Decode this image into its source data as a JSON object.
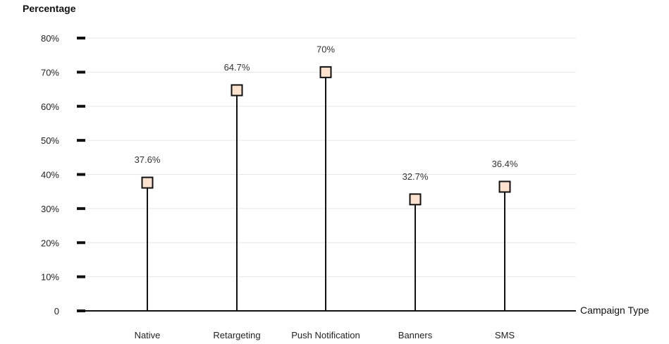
{
  "chart_data": {
    "type": "lollipop",
    "ylabel": "Percentage",
    "xlabel": "Campaign Type",
    "categories": [
      "Native",
      "Retargeting",
      "Push Notification",
      "Banners",
      "SMS"
    ],
    "values": [
      37.6,
      64.7,
      70,
      32.7,
      36.4
    ],
    "data_labels": [
      "37.6%",
      "64.7%",
      "70%",
      "32.7%",
      "36.4%"
    ],
    "ylim": [
      0,
      80
    ],
    "yticks": [
      {
        "value": 0,
        "label": "0"
      },
      {
        "value": 10,
        "label": "10%"
      },
      {
        "value": 20,
        "label": "20%"
      },
      {
        "value": 30,
        "label": "30%"
      },
      {
        "value": 40,
        "label": "40%"
      },
      {
        "value": 50,
        "label": "50%"
      },
      {
        "value": 60,
        "label": "60%"
      },
      {
        "value": 70,
        "label": "70%"
      },
      {
        "value": 80,
        "label": "80%"
      }
    ],
    "grid": true,
    "colors": {
      "marker_fill": "#fde3cf",
      "marker_stroke": "#111111",
      "stem": "#111111",
      "grid": "#e6e6e6",
      "axis": "#111111"
    }
  }
}
